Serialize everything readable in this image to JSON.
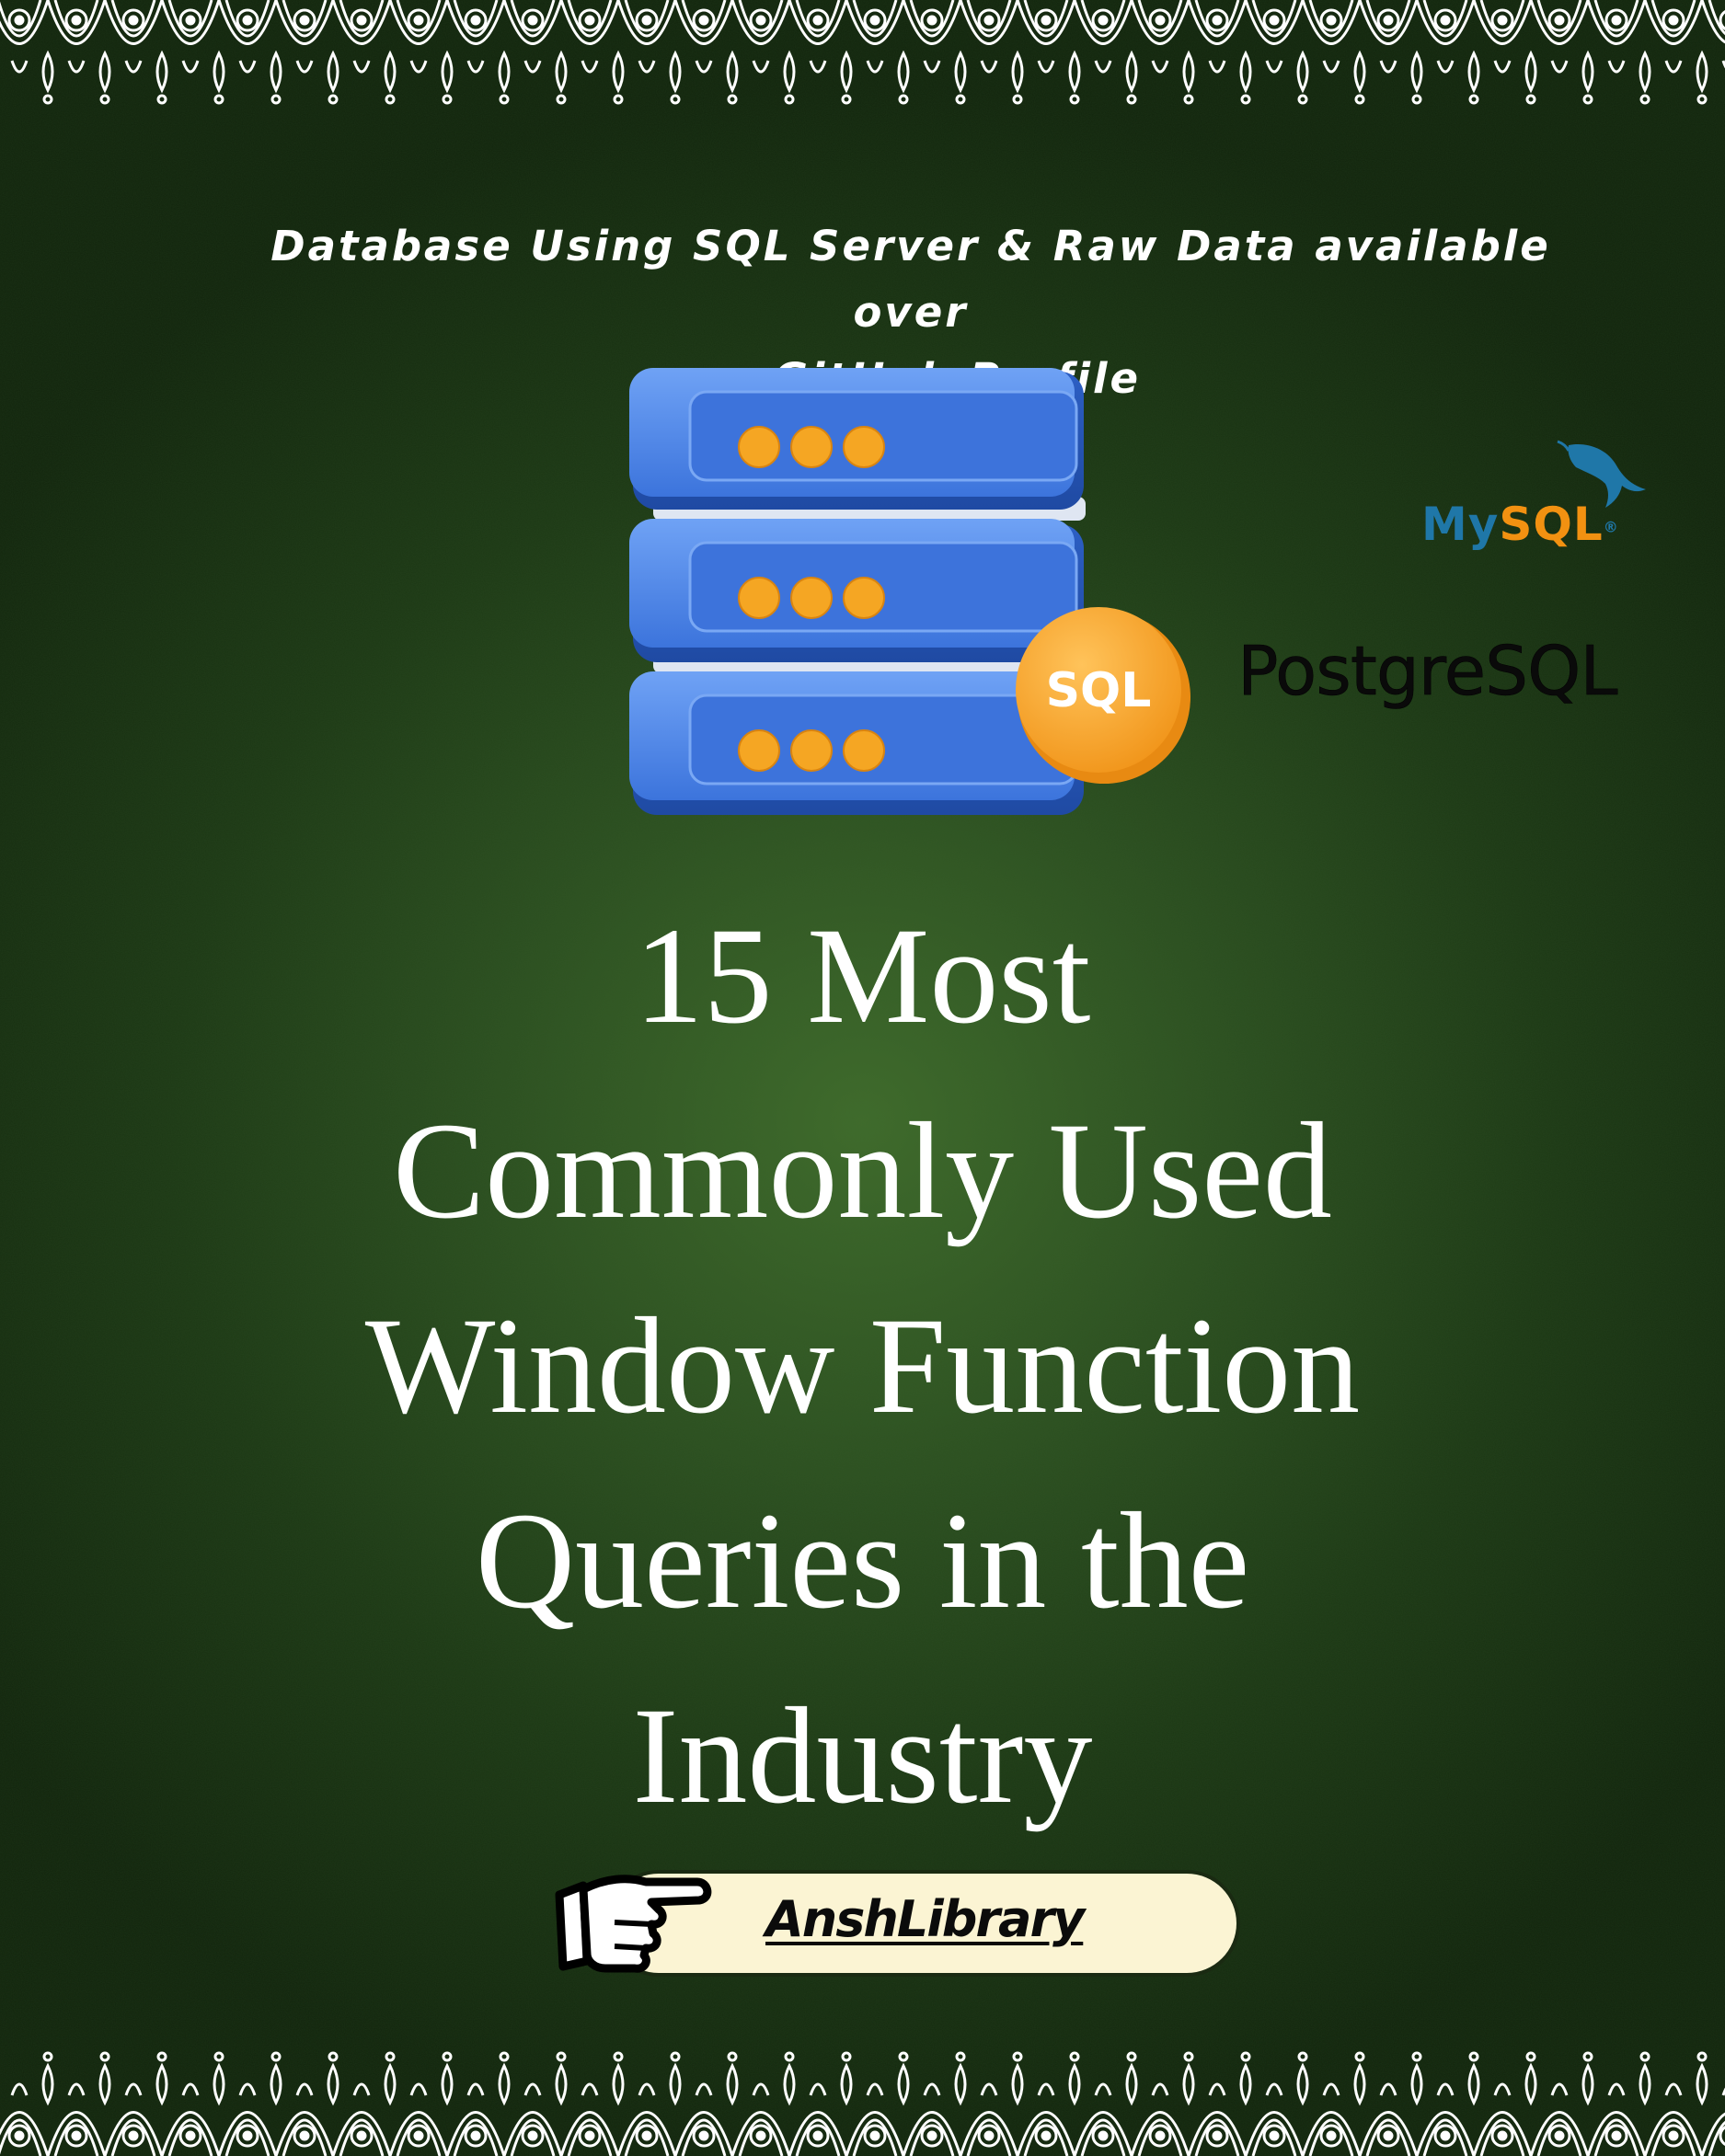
{
  "subtitle": {
    "line1": "Database Using SQL Server & Raw Data available over",
    "line2": "my GitHub Profile"
  },
  "illustration": {
    "badge_text": "SQL",
    "icon": "database-server-icon"
  },
  "logos": {
    "mysql": {
      "my": "My",
      "sql": "SQL",
      "mark": "®"
    },
    "postgresql": "PostgreSQL"
  },
  "title": {
    "line1": "15 Most",
    "line2": "Commonly Used",
    "line3": "Window Function",
    "line4": "Queries in the",
    "line5": "Industry"
  },
  "author": {
    "label": "AnshLibrary",
    "icon": "pointing-hand-icon"
  },
  "colors": {
    "background": "#2c5020",
    "server_blue": "#3f7be0",
    "dot_orange": "#f5a623",
    "pill_bg": "#fbf4d3",
    "mysql_blue": "#1f77a8",
    "mysql_orange": "#f29111"
  }
}
